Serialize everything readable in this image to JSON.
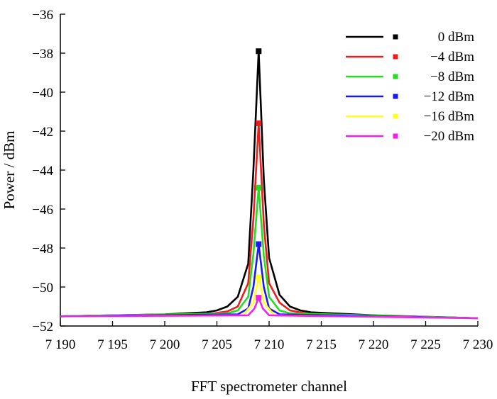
{
  "chart_data": {
    "type": "line",
    "xlabel": "FFT spectrometer channel",
    "ylabel": "Power / dBm",
    "xlim": [
      7190,
      7230
    ],
    "ylim": [
      -52,
      -36
    ],
    "x_ticks": [
      7190,
      7195,
      7200,
      7205,
      7210,
      7215,
      7220,
      7225,
      7230
    ],
    "x_tick_labels": [
      "7 190",
      "7 195",
      "7 200",
      "7 205",
      "7 210",
      "7 215",
      "7 220",
      "7 225",
      "7 230"
    ],
    "y_ticks": [
      -52,
      -50,
      -48,
      -46,
      -44,
      -42,
      -40,
      -38,
      -36
    ],
    "y_tick_labels": [
      "−52",
      "−50",
      "−48",
      "−46",
      "−44",
      "−42",
      "−40",
      "−38",
      "−36"
    ],
    "grid": false,
    "legend_position": "top-right",
    "series": [
      {
        "name": "0 dBm",
        "color": "#000000",
        "x": [
          7190,
          7200,
          7204,
          7205,
          7206,
          7207,
          7208,
          7208.5,
          7209,
          7209.5,
          7210,
          7211,
          7212,
          7213,
          7214,
          7220,
          7230
        ],
        "y": [
          -51.5,
          -51.4,
          -51.3,
          -51.2,
          -51.0,
          -50.5,
          -48.8,
          -44.0,
          -37.9,
          -44.5,
          -48.5,
          -50.4,
          -51.0,
          -51.2,
          -51.3,
          -51.45,
          -51.6
        ],
        "peak": {
          "x": 7209,
          "y": -37.9
        }
      },
      {
        "name": "−4 dBm",
        "color": "#ee1c1c",
        "x": [
          7190,
          7204,
          7206,
          7207,
          7208,
          7208.5,
          7209,
          7209.5,
          7210,
          7211,
          7212,
          7214,
          7230
        ],
        "y": [
          -51.5,
          -51.4,
          -51.25,
          -51.0,
          -49.8,
          -46.5,
          -41.6,
          -46.8,
          -49.8,
          -50.8,
          -51.2,
          -51.4,
          -51.6
        ],
        "peak": {
          "x": 7209,
          "y": -41.6
        }
      },
      {
        "name": "−8 dBm",
        "color": "#22dd22",
        "x": [
          7190,
          7206,
          7207,
          7208,
          7208.5,
          7209,
          7209.5,
          7210,
          7211,
          7212,
          7230
        ],
        "y": [
          -51.5,
          -51.35,
          -51.2,
          -50.5,
          -48.3,
          -44.9,
          -48.4,
          -50.5,
          -51.2,
          -51.35,
          -51.6
        ],
        "peak": {
          "x": 7209,
          "y": -44.9
        }
      },
      {
        "name": "−12 dBm",
        "color": "#1a1aee",
        "x": [
          7190,
          7207,
          7208,
          7208.5,
          7209,
          7209.5,
          7210,
          7211,
          7230
        ],
        "y": [
          -51.5,
          -51.4,
          -51.1,
          -50.0,
          -47.8,
          -50.0,
          -51.1,
          -51.4,
          -51.6
        ],
        "peak": {
          "x": 7209,
          "y": -47.8
        }
      },
      {
        "name": "−16 dBm",
        "color": "#ffff22",
        "x": [
          7190,
          7207.5,
          7208.5,
          7209,
          7209.5,
          7210.5,
          7230
        ],
        "y": [
          -51.5,
          -51.45,
          -50.8,
          -49.5,
          -50.8,
          -51.45,
          -51.6
        ],
        "peak": {
          "x": 7209,
          "y": -49.5
        }
      },
      {
        "name": "−20 dBm",
        "color": "#ee22ee",
        "x": [
          7190,
          7208,
          7208.6,
          7209,
          7209.4,
          7210,
          7230
        ],
        "y": [
          -51.5,
          -51.45,
          -51.1,
          -50.55,
          -51.1,
          -51.45,
          -51.6
        ],
        "peak": {
          "x": 7209,
          "y": -50.55
        }
      }
    ]
  }
}
